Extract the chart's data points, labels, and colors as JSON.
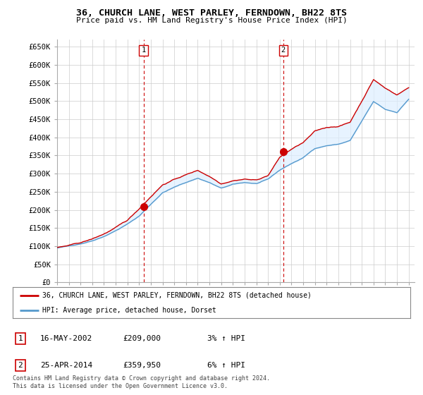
{
  "title": "36, CHURCH LANE, WEST PARLEY, FERNDOWN, BH22 8TS",
  "subtitle": "Price paid vs. HM Land Registry's House Price Index (HPI)",
  "legend_line1": "36, CHURCH LANE, WEST PARLEY, FERNDOWN, BH22 8TS (detached house)",
  "legend_line2": "HPI: Average price, detached house, Dorset",
  "annotation1_label": "1",
  "annotation1_date": "16-MAY-2002",
  "annotation1_price": "£209,000",
  "annotation1_hpi": "3% ↑ HPI",
  "annotation2_label": "2",
  "annotation2_date": "25-APR-2014",
  "annotation2_price": "£359,950",
  "annotation2_hpi": "6% ↑ HPI",
  "footnote": "Contains HM Land Registry data © Crown copyright and database right 2024.\nThis data is licensed under the Open Government Licence v3.0.",
  "line1_color": "#cc0000",
  "line2_color": "#5599cc",
  "fill_color": "#ddeeff",
  "background_color": "#ffffff",
  "grid_color": "#cccccc",
  "ylim": [
    0,
    670000
  ],
  "yticks": [
    0,
    50000,
    100000,
    150000,
    200000,
    250000,
    300000,
    350000,
    400000,
    450000,
    500000,
    550000,
    600000,
    650000
  ],
  "ytick_labels": [
    "£0",
    "£50K",
    "£100K",
    "£150K",
    "£200K",
    "£250K",
    "£300K",
    "£350K",
    "£400K",
    "£450K",
    "£500K",
    "£550K",
    "£600K",
    "£650K"
  ],
  "sale1_x": 2002.37,
  "sale1_y": 209000,
  "sale2_x": 2014.29,
  "sale2_y": 359950,
  "xmin": 1995.0,
  "xmax": 2025.5
}
